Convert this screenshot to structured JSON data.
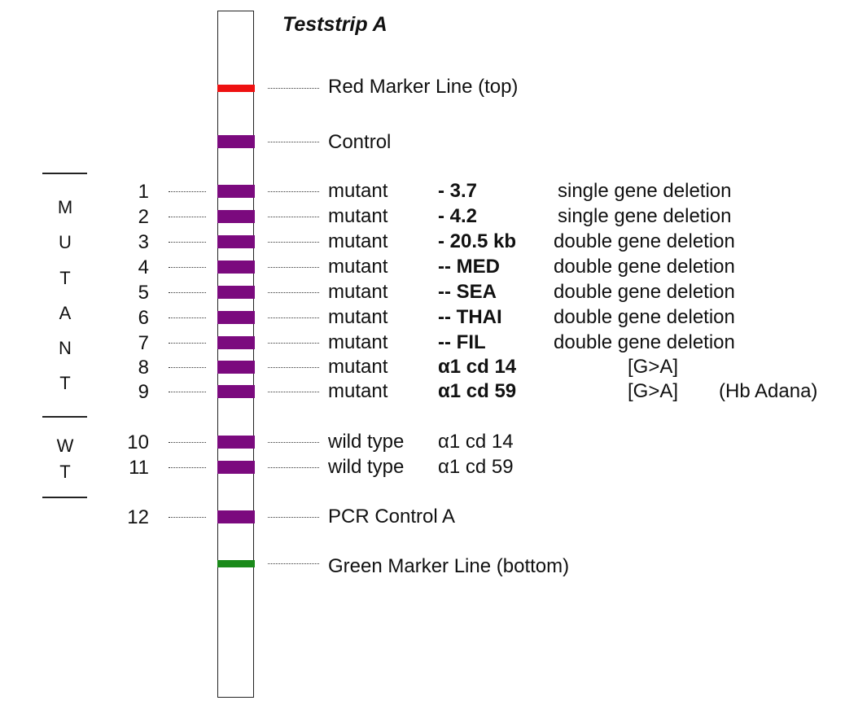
{
  "title": "Teststrip A",
  "colors": {
    "purple": "#7b0a7e",
    "red": "#ee1111",
    "green": "#1a8a1a"
  },
  "markers": {
    "top_label": "Red Marker Line (top)",
    "control_label": "Control",
    "bottom_label": "Green Marker Line (bottom)"
  },
  "bands": [
    {
      "num": "1",
      "label": "mutant",
      "mutation": "- 3.7",
      "desc": "single gene deletion"
    },
    {
      "num": "2",
      "label": "mutant",
      "mutation": "- 4.2",
      "desc": "single gene deletion"
    },
    {
      "num": "3",
      "label": "mutant",
      "mutation": "- 20.5 kb",
      "desc": "double gene deletion"
    },
    {
      "num": "4",
      "label": "mutant",
      "mutation": "-- MED",
      "desc": "double gene deletion"
    },
    {
      "num": "5",
      "label": "mutant",
      "mutation": "-- SEA",
      "desc": "double gene deletion"
    },
    {
      "num": "6",
      "label": "mutant",
      "mutation": "-- THAI",
      "desc": "double gene deletion"
    },
    {
      "num": "7",
      "label": "mutant",
      "mutation": "-- FIL",
      "desc": "double gene deletion"
    },
    {
      "num": "8",
      "label": "mutant",
      "mutation": "α1 cd 14",
      "desc": "[G>A]"
    },
    {
      "num": "9",
      "label": "mutant",
      "mutation": "α1 cd 59",
      "desc": "[G>A]",
      "note": "(Hb Adana)"
    },
    {
      "num": "10",
      "label": "wild type",
      "allele": "α1 cd 14"
    },
    {
      "num": "11",
      "label": "wild type",
      "allele": "α1 cd 59"
    },
    {
      "num": "12",
      "label": "PCR Control A"
    }
  ],
  "groups": {
    "mutant_letters": [
      "M",
      "U",
      "T",
      "A",
      "N",
      "T"
    ],
    "wt_letters": [
      "W",
      "T"
    ]
  }
}
